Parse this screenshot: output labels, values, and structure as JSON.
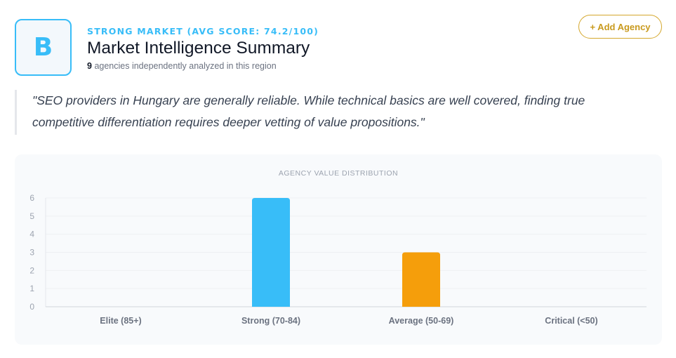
{
  "header": {
    "grade": "B",
    "market_label": "STRONG MARKET (AVG SCORE: 74.2/100)",
    "title": "Market Intelligence Summary",
    "agency_count": "9",
    "agency_count_text": "agencies independently analyzed in this region",
    "add_button_label": "+ Add Agency"
  },
  "quote": {
    "text": "\"SEO providers in Hungary are generally reliable. While technical basics are well covered, finding true competitive differentiation requires deeper vetting of value propositions.\""
  },
  "colors": {
    "accent": "#38bdf8",
    "gold": "#d4a72c",
    "strong": "#38bdf8",
    "average": "#f59e0b"
  },
  "chart_data": {
    "type": "bar",
    "title": "AGENCY VALUE DISTRIBUTION",
    "categories": [
      "Elite (85+)",
      "Strong (70-84)",
      "Average (50-69)",
      "Critical (<50)"
    ],
    "values": [
      0,
      6,
      3,
      0
    ],
    "bar_colors": [
      "#38bdf8",
      "#38bdf8",
      "#f59e0b",
      "#ef4444"
    ],
    "ylim": [
      0,
      6
    ],
    "y_tick_labels": [
      "0",
      "1",
      "2",
      "3",
      "4",
      "5",
      "6"
    ],
    "xlabel": "",
    "ylabel": "",
    "grid": true,
    "legend": "none"
  }
}
